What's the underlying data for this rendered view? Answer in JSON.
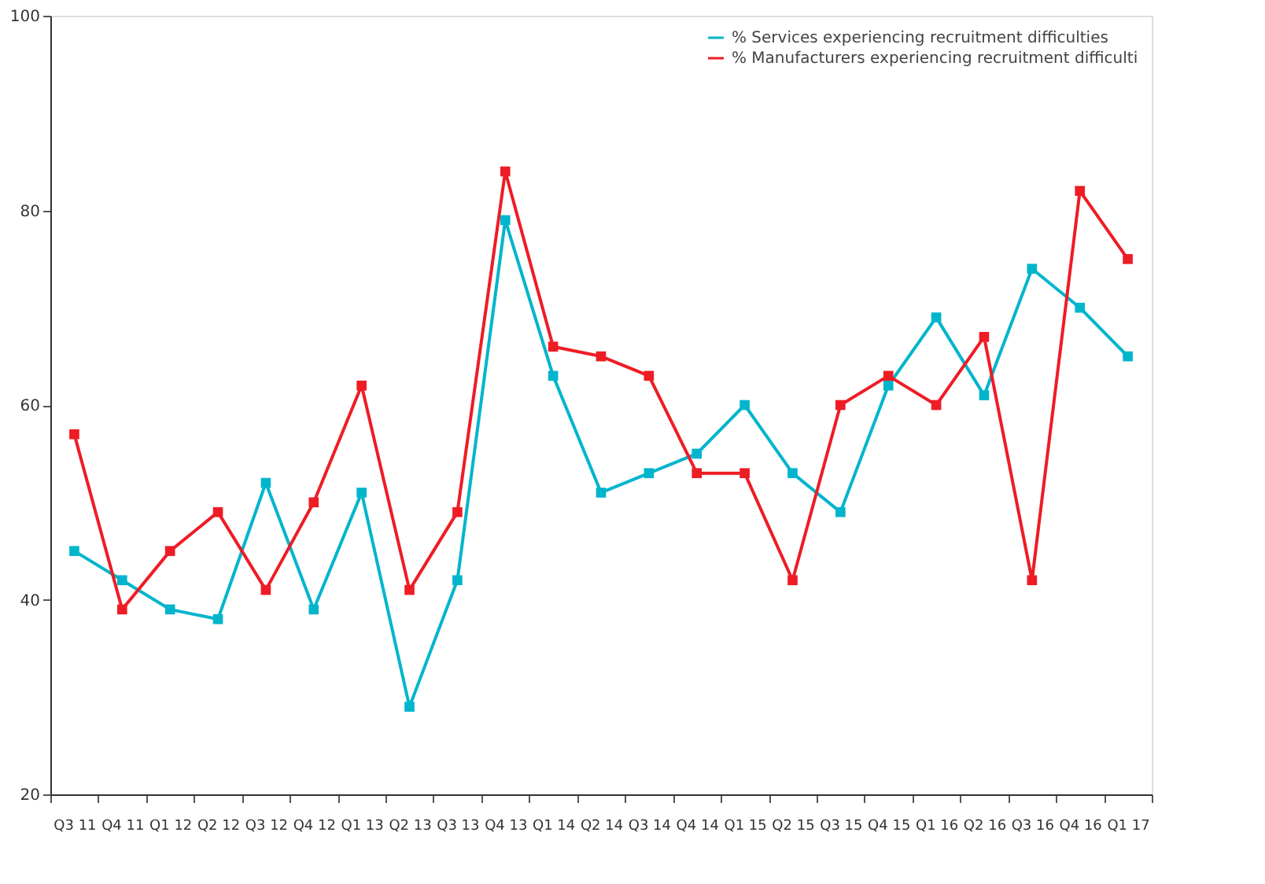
{
  "chart_data": {
    "type": "line",
    "categories": [
      "Q3 11",
      "Q4 11",
      "Q1 12",
      "Q2 12",
      "Q3 12",
      "Q4 12",
      "Q1 13",
      "Q2 13",
      "Q3 13",
      "Q4 13",
      "Q1 14",
      "Q2 14",
      "Q3 14",
      "Q4 14",
      "Q1 15",
      "Q2 15",
      "Q3 15",
      "Q4 15",
      "Q1 16",
      "Q2 16",
      "Q3 16",
      "Q4 16",
      "Q1 17"
    ],
    "series": [
      {
        "name": "% Services experiencing recruitment difficulties",
        "color": "#00b5cc",
        "values": [
          45,
          42,
          39,
          38,
          52,
          39,
          51,
          29,
          42,
          79,
          63,
          51,
          53,
          55,
          60,
          53,
          49,
          62,
          69,
          61,
          74,
          70,
          65
        ]
      },
      {
        "name": "% Manufacturers experiencing recruitment difficulti",
        "color": "#ee1c25",
        "values": [
          57,
          39,
          45,
          49,
          41,
          50,
          62,
          41,
          49,
          84,
          66,
          65,
          63,
          53,
          53,
          42,
          60,
          63,
          60,
          67,
          42,
          82,
          75
        ]
      }
    ],
    "ylim": [
      20,
      100
    ],
    "yticks": [
      20,
      40,
      60,
      80,
      100
    ],
    "grid": false,
    "legend": "top right",
    "marker": "square",
    "line_style": "solid"
  }
}
